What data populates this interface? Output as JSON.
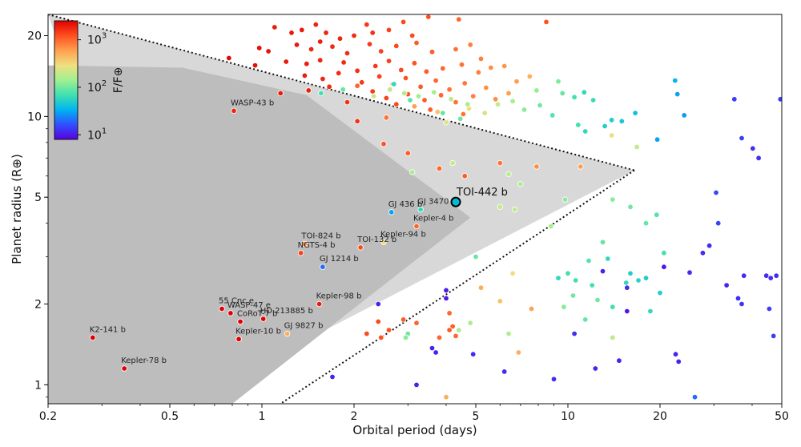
{
  "chart_data": {
    "type": "scatter",
    "x_scale": "log",
    "y_scale": "log",
    "xlabel": "Orbital period (days)",
    "ylabel": "Planet radius (R⊕)",
    "xlim": [
      0.2,
      50
    ],
    "ylim": [
      0.85,
      24
    ],
    "x_ticks": [
      {
        "v": 0.2,
        "label": "0.2"
      },
      {
        "v": 0.5,
        "label": "0.5"
      },
      {
        "v": 1,
        "label": "1"
      },
      {
        "v": 2,
        "label": "2"
      },
      {
        "v": 5,
        "label": "5"
      },
      {
        "v": 10,
        "label": "10"
      },
      {
        "v": 20,
        "label": "20"
      },
      {
        "v": 50,
        "label": "50"
      }
    ],
    "y_ticks": [
      {
        "v": 1,
        "label": "1"
      },
      {
        "v": 2,
        "label": "2"
      },
      {
        "v": 5,
        "label": "5"
      },
      {
        "v": 10,
        "label": "10"
      },
      {
        "v": 20,
        "label": "20"
      }
    ],
    "colorbar": {
      "label": "F/F⊕",
      "scale": "log",
      "range": [
        8,
        2500
      ],
      "ticks": [
        {
          "v": 10,
          "label": "10"
        },
        {
          "v": 100,
          "label": "10"
        },
        {
          "v": 1000,
          "label": "10"
        }
      ],
      "tick_exponents": [
        "1",
        "2",
        "3"
      ],
      "colors": [
        "#5a00e0",
        "#3050ff",
        "#00b4f0",
        "#40e0b0",
        "#a0f090",
        "#f0e080",
        "#ffa050",
        "#ff5020",
        "#e00000"
      ]
    },
    "desert_outer": [
      [
        0.2,
        24
      ],
      [
        16.5,
        6.3
      ],
      [
        0.55,
        0.85
      ]
    ],
    "desert_inner": [
      [
        0.2,
        15.5
      ],
      [
        0.55,
        15.2
      ],
      [
        1.4,
        12
      ],
      [
        4.8,
        4.2
      ],
      [
        2.2,
        2.1
      ],
      [
        0.8,
        0.85
      ],
      [
        0.2,
        0.85
      ]
    ],
    "boundary_lines": [
      [
        [
          0.2,
          24
        ],
        [
          16.5,
          6.3
        ]
      ],
      [
        [
          16.5,
          6.3
        ],
        [
          1.15,
          0.85
        ]
      ]
    ],
    "highlight": {
      "name": "TOI-442 b",
      "x": 4.3,
      "y": 4.8,
      "color": "#00bcd4"
    },
    "labeled_planets": [
      {
        "name": "WASP-43 b",
        "x": 0.81,
        "y": 10.5,
        "f": 1800
      },
      {
        "name": "GJ 3470 b",
        "x": 3.3,
        "y": 4.5,
        "f": 60
      },
      {
        "name": "GJ 436 b",
        "x": 2.65,
        "y": 4.4,
        "f": 30
      },
      {
        "name": "Kepler-4 b",
        "x": 3.2,
        "y": 3.9,
        "f": 1000
      },
      {
        "name": "Kepler-94 b",
        "x": 2.5,
        "y": 3.4,
        "f": 300
      },
      {
        "name": "TOI-132 b",
        "x": 2.1,
        "y": 3.25,
        "f": 1300
      },
      {
        "name": "TOI-824 b",
        "x": 1.38,
        "y": 3.35,
        "f": 700
      },
      {
        "name": "NGTS-4 b",
        "x": 1.34,
        "y": 3.1,
        "f": 1400
      },
      {
        "name": "GJ 1214 b",
        "x": 1.58,
        "y": 2.75,
        "f": 20
      },
      {
        "name": "Kepler-98 b",
        "x": 1.54,
        "y": 2.0,
        "f": 2000
      },
      {
        "name": "55 Cnc e",
        "x": 0.74,
        "y": 1.92,
        "f": 2500
      },
      {
        "name": "WASP-47 e",
        "x": 0.79,
        "y": 1.85,
        "f": 2500
      },
      {
        "name": "CoRoT-7 b",
        "x": 0.85,
        "y": 1.72,
        "f": 2500
      },
      {
        "name": "HD 213885 b",
        "x": 1.01,
        "y": 1.76,
        "f": 2500
      },
      {
        "name": "GJ 9827 b",
        "x": 1.21,
        "y": 1.55,
        "f": 500
      },
      {
        "name": "Kepler-10 b",
        "x": 0.84,
        "y": 1.48,
        "f": 2500
      },
      {
        "name": "K2-141 b",
        "x": 0.28,
        "y": 1.5,
        "f": 2500
      },
      {
        "name": "Kepler-78 b",
        "x": 0.355,
        "y": 1.15,
        "f": 2500
      }
    ],
    "points": [
      [
        1.1,
        21.5,
        2000
      ],
      [
        1.25,
        20.5,
        2000
      ],
      [
        1.35,
        21,
        2000
      ],
      [
        1.5,
        22,
        1800
      ],
      [
        1.55,
        19,
        1900
      ],
      [
        1.62,
        20.5,
        1800
      ],
      [
        1.8,
        19.5,
        1800
      ],
      [
        2.0,
        20,
        1700
      ],
      [
        2.2,
        22,
        1500
      ],
      [
        2.3,
        20.5,
        1600
      ],
      [
        2.6,
        21,
        1400
      ],
      [
        2.9,
        22.5,
        1300
      ],
      [
        3.1,
        20,
        1300
      ],
      [
        3.5,
        23.5,
        1200
      ],
      [
        4.4,
        23,
        1000
      ],
      [
        8.5,
        22.5,
        1200
      ],
      [
        0.98,
        18,
        2200
      ],
      [
        1.05,
        17.5,
        2100
      ],
      [
        1.3,
        18.5,
        2000
      ],
      [
        1.45,
        17.8,
        1800
      ],
      [
        1.7,
        18.2,
        1700
      ],
      [
        1.9,
        17.2,
        1700
      ],
      [
        2.25,
        18.6,
        1500
      ],
      [
        2.45,
        17.5,
        1400
      ],
      [
        2.75,
        18.3,
        1300
      ],
      [
        3.2,
        18.8,
        1100
      ],
      [
        3.6,
        17.4,
        1100
      ],
      [
        4.3,
        17.8,
        900
      ],
      [
        4.8,
        18.5,
        800
      ],
      [
        5.2,
        16.4,
        800
      ],
      [
        0.78,
        16.5,
        2300
      ],
      [
        0.95,
        15.5,
        2200
      ],
      [
        1.2,
        16,
        2000
      ],
      [
        1.4,
        15.7,
        1900
      ],
      [
        1.55,
        16.2,
        1800
      ],
      [
        1.85,
        15.9,
        1700
      ],
      [
        2.05,
        14.8,
        1600
      ],
      [
        2.35,
        15.4,
        1500
      ],
      [
        2.6,
        16.1,
        1400
      ],
      [
        2.85,
        14.9,
        1300
      ],
      [
        3.15,
        15.8,
        1200
      ],
      [
        3.45,
        14.7,
        1100
      ],
      [
        3.9,
        15.1,
        1000
      ],
      [
        4.5,
        15.6,
        900
      ],
      [
        5.1,
        14.6,
        800
      ],
      [
        5.6,
        15.2,
        700
      ],
      [
        6.2,
        15.4,
        650
      ],
      [
        1.38,
        14.2,
        1900
      ],
      [
        1.58,
        13.8,
        1800
      ],
      [
        1.78,
        14.5,
        1700
      ],
      [
        2.12,
        13.4,
        1500
      ],
      [
        2.42,
        14.1,
        1400
      ],
      [
        2.68,
        13.2,
        1300
      ],
      [
        2.95,
        13.9,
        1200
      ],
      [
        3.3,
        12.9,
        1100
      ],
      [
        3.7,
        13.6,
        1000
      ],
      [
        4.1,
        12.6,
        900
      ],
      [
        4.6,
        13.3,
        850
      ],
      [
        5.4,
        12.8,
        700
      ],
      [
        6.8,
        13.5,
        600
      ],
      [
        7.5,
        14.1,
        500
      ],
      [
        1.42,
        12.5,
        1900
      ],
      [
        1.66,
        12.9,
        1700
      ],
      [
        2.3,
        12.4,
        1500
      ],
      [
        2.55,
        11.7,
        1400
      ],
      [
        3.0,
        12.1,
        1200
      ],
      [
        3.4,
        11.5,
        1100
      ],
      [
        3.85,
        12.0,
        1000
      ],
      [
        4.3,
        11.3,
        900
      ],
      [
        4.9,
        11.9,
        800
      ],
      [
        5.8,
        11.6,
        700
      ],
      [
        6.4,
        12.2,
        600
      ],
      [
        1.15,
        12.2,
        2000
      ],
      [
        1.9,
        11.3,
        1600
      ],
      [
        2.75,
        11.1,
        1300
      ],
      [
        3.55,
        10.6,
        1100
      ],
      [
        4.55,
        10.2,
        900
      ],
      [
        2.05,
        9.6,
        1600
      ],
      [
        2.55,
        9.9,
        900
      ],
      [
        3.15,
        10.9,
        600
      ],
      [
        3.75,
        10.4,
        400
      ],
      [
        4.0,
        9.5,
        250
      ],
      [
        4.75,
        10.7,
        300
      ],
      [
        5.35,
        10.3,
        220
      ],
      [
        5.9,
        11.1,
        200
      ],
      [
        6.6,
        11.4,
        150
      ],
      [
        7.2,
        10.6,
        120
      ],
      [
        8.1,
        11.0,
        100
      ],
      [
        8.9,
        10.1,
        80
      ],
      [
        9.6,
        12.2,
        90
      ],
      [
        10.5,
        11.8,
        70
      ],
      [
        11.3,
        12.3,
        60
      ],
      [
        12.1,
        11.5,
        65
      ],
      [
        13.2,
        9.2,
        50
      ],
      [
        15.0,
        9.6,
        45
      ],
      [
        16.6,
        10.3,
        40
      ],
      [
        19.6,
        8.2,
        30
      ],
      [
        22.4,
        13.6,
        35
      ],
      [
        22.8,
        12.1,
        30
      ],
      [
        24.0,
        10.1,
        28
      ],
      [
        7.9,
        12.5,
        130
      ],
      [
        9.3,
        13.5,
        110
      ],
      [
        10.8,
        9.3,
        70
      ],
      [
        11.4,
        8.8,
        60
      ],
      [
        13.9,
        9.7,
        50
      ],
      [
        2.32,
        11.9,
        200
      ],
      [
        2.62,
        12.6,
        180
      ],
      [
        2.92,
        12.2,
        160
      ],
      [
        3.25,
        11.9,
        140
      ],
      [
        3.65,
        12.3,
        150
      ],
      [
        4.15,
        11.6,
        180
      ],
      [
        4.7,
        11.1,
        160
      ],
      [
        2.7,
        13.2,
        60
      ],
      [
        3.05,
        11.5,
        80
      ],
      [
        3.9,
        10.3,
        90
      ],
      [
        4.45,
        9.8,
        95
      ],
      [
        1.56,
        12.2,
        70
      ],
      [
        1.84,
        12.6,
        90
      ],
      [
        2.05,
        13.0,
        1000
      ],
      [
        2.5,
        7.9,
        1200
      ],
      [
        3.0,
        7.3,
        1100
      ],
      [
        3.8,
        6.4,
        1000
      ],
      [
        4.6,
        6.0,
        1100
      ],
      [
        6.0,
        6.7,
        900
      ],
      [
        7.9,
        6.5,
        700
      ],
      [
        11.0,
        6.5,
        600
      ],
      [
        13.9,
        8.5,
        300
      ],
      [
        16.8,
        7.7,
        200
      ],
      [
        3.1,
        6.2,
        150
      ],
      [
        4.2,
        6.7,
        200
      ],
      [
        6.4,
        6.1,
        180
      ],
      [
        7.0,
        5.6,
        160
      ],
      [
        9.8,
        4.9,
        120
      ],
      [
        6.0,
        4.6,
        200
      ],
      [
        6.7,
        4.5,
        180
      ],
      [
        8.8,
        3.9,
        150
      ],
      [
        14.0,
        4.9,
        120
      ],
      [
        16.0,
        4.6,
        100
      ],
      [
        18.0,
        4.0,
        90
      ],
      [
        19.5,
        4.3,
        80
      ],
      [
        20.6,
        3.1,
        70
      ],
      [
        13.0,
        3.4,
        90
      ],
      [
        11.7,
        2.9,
        80
      ],
      [
        10.0,
        2.6,
        70
      ],
      [
        9.3,
        2.5,
        60
      ],
      [
        10.6,
        2.45,
        70
      ],
      [
        12.0,
        2.35,
        70
      ],
      [
        15.5,
        2.4,
        60
      ],
      [
        17.0,
        2.45,
        55
      ],
      [
        18.0,
        2.5,
        50
      ],
      [
        16.0,
        2.6,
        50
      ],
      [
        13.5,
        2.95,
        60
      ],
      [
        5.0,
        3.0,
        90
      ],
      [
        6.6,
        2.6,
        300
      ],
      [
        6.0,
        2.05,
        400
      ],
      [
        5.2,
        2.3,
        500
      ],
      [
        7.6,
        1.92,
        600
      ],
      [
        9.7,
        1.95,
        120
      ],
      [
        10.4,
        2.15,
        100
      ],
      [
        12.5,
        2.07,
        100
      ],
      [
        11.4,
        1.75,
        90
      ],
      [
        14.0,
        1.95,
        70
      ],
      [
        18.6,
        1.88,
        60
      ],
      [
        20.0,
        2.2,
        50
      ],
      [
        2.4,
        1.72,
        1300
      ],
      [
        2.6,
        1.6,
        1200
      ],
      [
        2.9,
        1.75,
        1100
      ],
      [
        3.2,
        1.7,
        1000
      ],
      [
        4.1,
        1.85,
        1000
      ],
      [
        4.2,
        1.65,
        1100
      ],
      [
        2.2,
        1.55,
        1300
      ],
      [
        2.45,
        1.5,
        1200
      ],
      [
        3.0,
        1.55,
        100
      ],
      [
        2.95,
        1.5,
        120
      ],
      [
        4.4,
        1.6,
        150
      ],
      [
        4.8,
        1.7,
        160
      ],
      [
        6.4,
        1.55,
        170
      ],
      [
        6.9,
        1.32,
        500
      ],
      [
        14.0,
        1.5,
        180
      ],
      [
        4.1,
        1.6,
        1100
      ],
      [
        3.8,
        1.5,
        1000
      ],
      [
        4.3,
        1.52,
        1000
      ],
      [
        25.0,
        2.62,
        12
      ],
      [
        27.6,
        3.1,
        12
      ],
      [
        29.0,
        3.3,
        12
      ],
      [
        31.0,
        4.0,
        15
      ],
      [
        30.5,
        5.2,
        15
      ],
      [
        37.0,
        8.3,
        14
      ],
      [
        40.2,
        7.6,
        12
      ],
      [
        42.0,
        7.0,
        12
      ],
      [
        35.0,
        11.6,
        14
      ],
      [
        49.5,
        11.6,
        13
      ],
      [
        20.6,
        2.75,
        10
      ],
      [
        15.6,
        1.88,
        10
      ],
      [
        37.6,
        2.55,
        12
      ],
      [
        44.5,
        2.55,
        12
      ],
      [
        46.0,
        2.5,
        12
      ],
      [
        48.0,
        2.55,
        12
      ],
      [
        37.0,
        2.0,
        13
      ],
      [
        45.5,
        1.92,
        14
      ],
      [
        47.0,
        1.52,
        14
      ],
      [
        33.0,
        2.35,
        11
      ],
      [
        36.0,
        2.1,
        12
      ],
      [
        13.0,
        2.65,
        11
      ],
      [
        10.5,
        1.55,
        12
      ],
      [
        12.3,
        1.15,
        11
      ],
      [
        14.7,
        1.23,
        11
      ],
      [
        9.0,
        1.05,
        12
      ],
      [
        6.2,
        1.12,
        12
      ],
      [
        4.9,
        1.3,
        12
      ],
      [
        3.6,
        1.37,
        11
      ],
      [
        3.2,
        1.0,
        11
      ],
      [
        3.7,
        1.32,
        11
      ],
      [
        4.0,
        2.1,
        10
      ],
      [
        4.0,
        2.25,
        10
      ],
      [
        2.4,
        2.0,
        11
      ],
      [
        22.5,
        1.3,
        11
      ],
      [
        23.0,
        1.22,
        11
      ],
      [
        26.0,
        0.9,
        20
      ],
      [
        4.0,
        0.9,
        500
      ],
      [
        1.7,
        1.07,
        11
      ],
      [
        15.6,
        2.3,
        12
      ]
    ]
  }
}
